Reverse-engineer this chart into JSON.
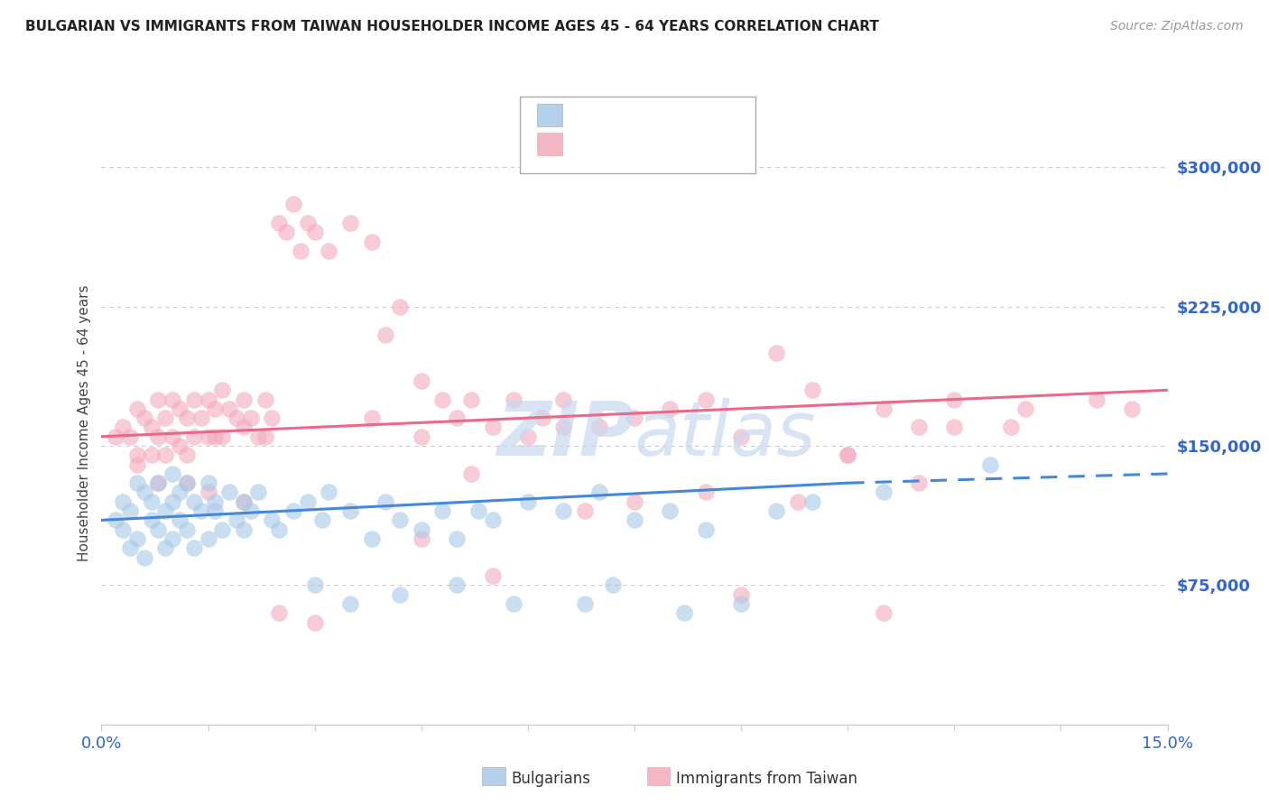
{
  "title": "BULGARIAN VS IMMIGRANTS FROM TAIWAN HOUSEHOLDER INCOME AGES 45 - 64 YEARS CORRELATION CHART",
  "source": "Source: ZipAtlas.com",
  "ylabel": "Householder Income Ages 45 - 64 years",
  "ytick_labels": [
    "$300,000",
    "$225,000",
    "$150,000",
    "$75,000"
  ],
  "ytick_values": [
    300000,
    225000,
    150000,
    75000
  ],
  "xlim": [
    0.0,
    15.0
  ],
  "ylim": [
    0,
    325000
  ],
  "blue_color": "#A8C8E8",
  "pink_color": "#F4AABB",
  "blue_line_color": "#4488DD",
  "pink_line_color": "#EE6688",
  "title_color": "#222222",
  "source_color": "#999999",
  "axis_label_color": "#3366CC",
  "watermark_color": "#C8D8EE",
  "background_color": "#FFFFFF",
  "grid_color": "#CCCCCC",
  "xtick_values": [
    0.0,
    1.5,
    3.0,
    4.5,
    6.0,
    7.5,
    9.0,
    10.5,
    12.0,
    13.5,
    15.0
  ],
  "blue_scatter_x": [
    0.2,
    0.3,
    0.3,
    0.4,
    0.4,
    0.5,
    0.5,
    0.6,
    0.6,
    0.7,
    0.7,
    0.8,
    0.8,
    0.9,
    0.9,
    1.0,
    1.0,
    1.0,
    1.1,
    1.1,
    1.2,
    1.2,
    1.3,
    1.3,
    1.4,
    1.5,
    1.5,
    1.6,
    1.6,
    1.7,
    1.8,
    1.9,
    2.0,
    2.0,
    2.1,
    2.2,
    2.4,
    2.5,
    2.7,
    2.9,
    3.1,
    3.2,
    3.5,
    3.8,
    4.0,
    4.2,
    4.5,
    4.8,
    5.0,
    5.3,
    5.5,
    6.0,
    6.5,
    7.0,
    7.5,
    8.0,
    8.5,
    9.5,
    10.0,
    11.0,
    12.5,
    3.0,
    3.5,
    4.2,
    5.0,
    5.8,
    6.8,
    7.2,
    8.2,
    9.0
  ],
  "blue_scatter_y": [
    110000,
    120000,
    105000,
    115000,
    95000,
    130000,
    100000,
    125000,
    90000,
    120000,
    110000,
    130000,
    105000,
    115000,
    95000,
    135000,
    120000,
    100000,
    125000,
    110000,
    130000,
    105000,
    120000,
    95000,
    115000,
    130000,
    100000,
    120000,
    115000,
    105000,
    125000,
    110000,
    120000,
    105000,
    115000,
    125000,
    110000,
    105000,
    115000,
    120000,
    110000,
    125000,
    115000,
    100000,
    120000,
    110000,
    105000,
    115000,
    100000,
    115000,
    110000,
    120000,
    115000,
    125000,
    110000,
    115000,
    105000,
    115000,
    120000,
    125000,
    140000,
    75000,
    65000,
    70000,
    75000,
    65000,
    65000,
    75000,
    60000,
    65000
  ],
  "pink_scatter_x": [
    0.2,
    0.3,
    0.4,
    0.5,
    0.5,
    0.6,
    0.7,
    0.7,
    0.8,
    0.8,
    0.9,
    0.9,
    1.0,
    1.0,
    1.1,
    1.1,
    1.2,
    1.2,
    1.3,
    1.3,
    1.4,
    1.5,
    1.5,
    1.6,
    1.6,
    1.7,
    1.7,
    1.8,
    1.9,
    2.0,
    2.0,
    2.1,
    2.2,
    2.3,
    2.3,
    2.4,
    2.5,
    2.6,
    2.7,
    2.8,
    2.9,
    3.0,
    3.2,
    3.5,
    3.8,
    4.0,
    4.2,
    4.5,
    4.8,
    5.0,
    5.2,
    5.5,
    5.8,
    6.0,
    6.2,
    6.5,
    7.0,
    7.5,
    8.0,
    8.5,
    9.0,
    9.5,
    10.0,
    10.5,
    11.0,
    11.5,
    12.0,
    13.0,
    14.0,
    14.5,
    0.5,
    0.8,
    1.2,
    1.5,
    2.0,
    2.5,
    3.0,
    4.5,
    5.5,
    7.5,
    9.8,
    11.5,
    12.8,
    4.5,
    6.5,
    8.5,
    10.5,
    12.0,
    3.8,
    5.2,
    6.8,
    9.0,
    11.0
  ],
  "pink_scatter_y": [
    155000,
    160000,
    155000,
    170000,
    145000,
    165000,
    160000,
    145000,
    175000,
    155000,
    165000,
    145000,
    175000,
    155000,
    170000,
    150000,
    165000,
    145000,
    175000,
    155000,
    165000,
    175000,
    155000,
    170000,
    155000,
    180000,
    155000,
    170000,
    165000,
    175000,
    160000,
    165000,
    155000,
    175000,
    155000,
    165000,
    270000,
    265000,
    280000,
    255000,
    270000,
    265000,
    255000,
    270000,
    260000,
    210000,
    225000,
    185000,
    175000,
    165000,
    175000,
    160000,
    175000,
    155000,
    165000,
    175000,
    160000,
    165000,
    170000,
    175000,
    155000,
    200000,
    180000,
    145000,
    170000,
    160000,
    175000,
    170000,
    175000,
    170000,
    140000,
    130000,
    130000,
    125000,
    120000,
    60000,
    55000,
    100000,
    80000,
    120000,
    120000,
    130000,
    160000,
    155000,
    160000,
    125000,
    145000,
    160000,
    165000,
    135000,
    115000,
    70000,
    60000
  ],
  "blue_line_x0": 0.0,
  "blue_line_x1": 10.5,
  "blue_line_y0": 110000,
  "blue_line_y1": 130000,
  "blue_dash_x0": 10.5,
  "blue_dash_x1": 15.0,
  "blue_dash_y0": 130000,
  "blue_dash_y1": 135000,
  "pink_line_x0": 0.0,
  "pink_line_x1": 15.0,
  "pink_line_y0": 155000,
  "pink_line_y1": 180000
}
